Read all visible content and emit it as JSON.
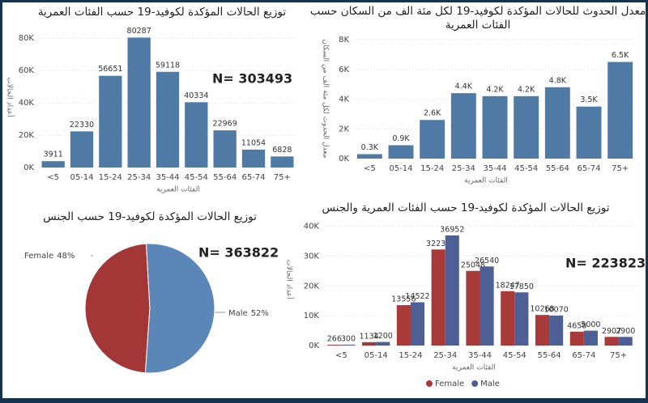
{
  "chart_data": [
    {
      "type": "bar",
      "title": "توزيع الحالات المؤكدة لكوفيد-19 حسب الفئات العمرية",
      "x_label": "الفئات العمرية",
      "y_label": "أعداد الحالات",
      "annotation": "N= 303493",
      "categories": [
        "<5",
        "05-14",
        "15-24",
        "25-34",
        "35-44",
        "45-54",
        "55-64",
        "65-74",
        "75+"
      ],
      "values": [
        3911,
        22330,
        56651,
        80287,
        59118,
        40334,
        22969,
        11054,
        6828
      ],
      "color": "#4f7aa6",
      "ylim": [
        0,
        86000
      ],
      "yticks": [
        {
          "value": 0,
          "label": "0K"
        },
        {
          "value": 20000,
          "label": "20K"
        },
        {
          "value": 40000,
          "label": "40K"
        },
        {
          "value": 60000,
          "label": "60K"
        },
        {
          "value": 80000,
          "label": "80K"
        }
      ]
    },
    {
      "type": "bar",
      "title": [
        "معدل الحدوث للحالات المؤكدة لكوفيد-19 لكل مئة الف من السكان حسب",
        "الفئات العمرية"
      ],
      "x_label": "الفئات العمرية",
      "y_label": "معدل الحدوث لكل مئة الف من السكان",
      "categories": [
        "<5",
        "05-14",
        "15-24",
        "25-34",
        "35-44",
        "45-54",
        "55-64",
        "65-74",
        "75+"
      ],
      "values": [
        300,
        900,
        2600,
        4400,
        4200,
        4200,
        4800,
        3500,
        6500
      ],
      "value_labels": [
        "0.3K",
        "0.9K",
        "2.6K",
        "4.4K",
        "4.2K",
        "4.2K",
        "4.8K",
        "3.5K",
        "6.5K"
      ],
      "color": "#4f7aa6",
      "ylim": [
        0,
        8000
      ],
      "yticks": [
        {
          "value": 0,
          "label": "0K"
        },
        {
          "value": 2000,
          "label": "2K"
        },
        {
          "value": 4000,
          "label": "4K"
        },
        {
          "value": 6000,
          "label": "6K"
        },
        {
          "value": 8000,
          "label": "8K"
        }
      ]
    },
    {
      "type": "pie",
      "title": "توزيع الحالات المؤكدة لكوفيد-19 حسب الجنس",
      "annotation": "N= 363822",
      "categories": [
        "Female",
        "Male"
      ],
      "values": [
        48,
        52
      ],
      "value_labels": [
        "48%",
        "52%"
      ],
      "colors": [
        "#a33636",
        "#5b86b8"
      ]
    },
    {
      "type": "grouped-bar",
      "title": "توزيع الحالات المؤكدة لكوفيد-19 حسب الفئات العمرية والجنس",
      "x_label": "الفئات العمرية",
      "y_label": "أعداد الحالات",
      "annotation": "N= 223823",
      "categories": [
        "<5",
        "05-14",
        "15-24",
        "25-34",
        "35-44",
        "45-54",
        "55-64",
        "65-74",
        "75+"
      ],
      "series": [
        {
          "name": "Female",
          "color": "#a83a3a",
          "values": [
            266,
            1134,
            13556,
            32230,
            25048,
            18247,
            10268,
            4658,
            2907
          ]
        },
        {
          "name": "Male",
          "color": "#4d5f94",
          "values": [
            300,
            1200,
            14522,
            36952,
            26540,
            17850,
            10070,
            5000,
            2900
          ]
        }
      ],
      "ylim": [
        0,
        41000
      ],
      "yticks": [
        {
          "value": 0,
          "label": "0K"
        },
        {
          "value": 10000,
          "label": "10K"
        },
        {
          "value": 20000,
          "label": "20K"
        },
        {
          "value": 30000,
          "label": "30K"
        },
        {
          "value": 40000,
          "label": "40K"
        }
      ]
    }
  ]
}
